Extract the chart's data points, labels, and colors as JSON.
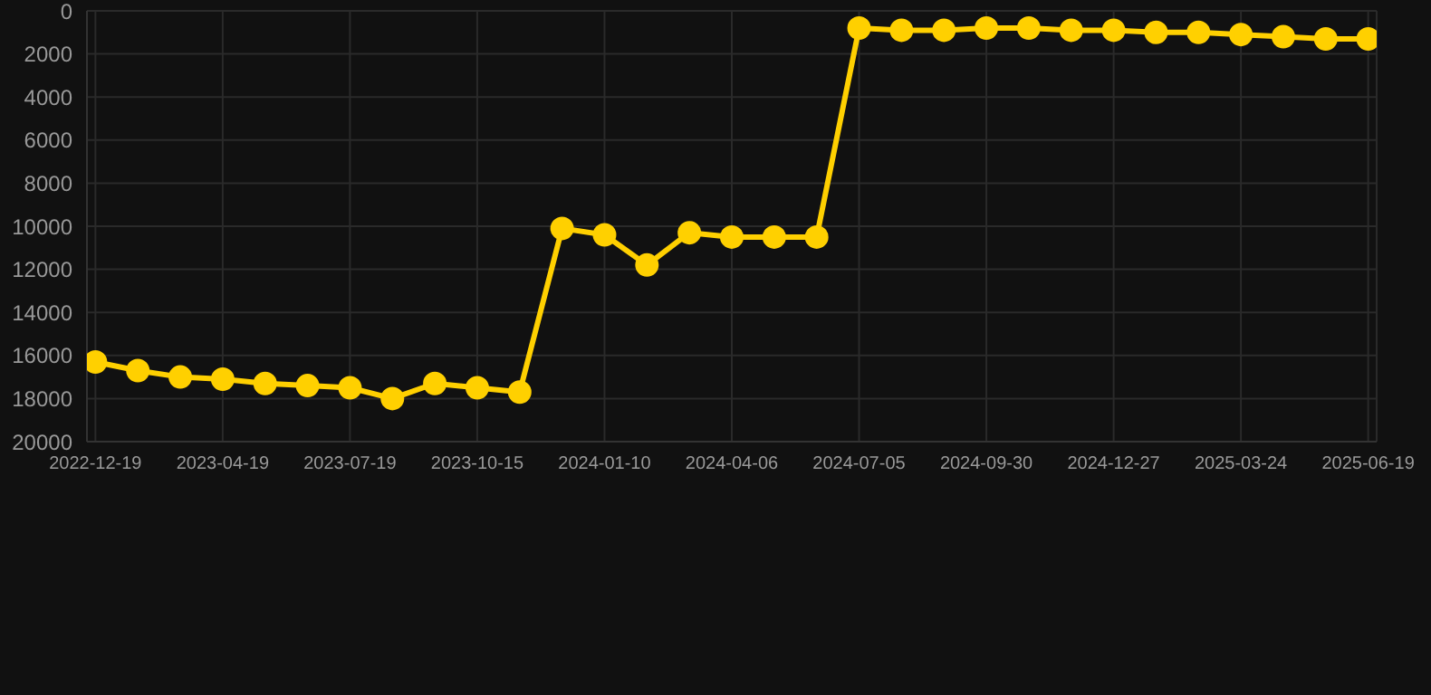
{
  "chart_data": {
    "type": "line",
    "categories": [
      "2022-12-19",
      null,
      null,
      "2023-04-19",
      null,
      null,
      "2023-07-19",
      null,
      null,
      "2023-10-15",
      null,
      null,
      "2024-01-10",
      null,
      null,
      "2024-04-06",
      null,
      null,
      "2024-07-05",
      null,
      null,
      "2024-09-30",
      null,
      null,
      "2024-12-27",
      null,
      null,
      "2025-03-24",
      null,
      null,
      "2025-06-19"
    ],
    "series": [
      {
        "color": "#ffd000",
        "values": [
          16300,
          16700,
          17000,
          17100,
          17300,
          17400,
          17500,
          18000,
          17300,
          17500,
          17700,
          10100,
          10400,
          11800,
          10300,
          10500,
          10500,
          10500,
          800,
          900,
          900,
          800,
          800,
          900,
          900,
          1000,
          1000,
          1100,
          1200,
          1300,
          1300
        ]
      }
    ],
    "ylim": [
      20000,
      0
    ],
    "yticks": [
      0,
      2000,
      4000,
      6000,
      8000,
      10000,
      12000,
      14000,
      16000,
      18000,
      20000
    ],
    "grid": true,
    "marker": "circle",
    "line_style": "solid"
  }
}
